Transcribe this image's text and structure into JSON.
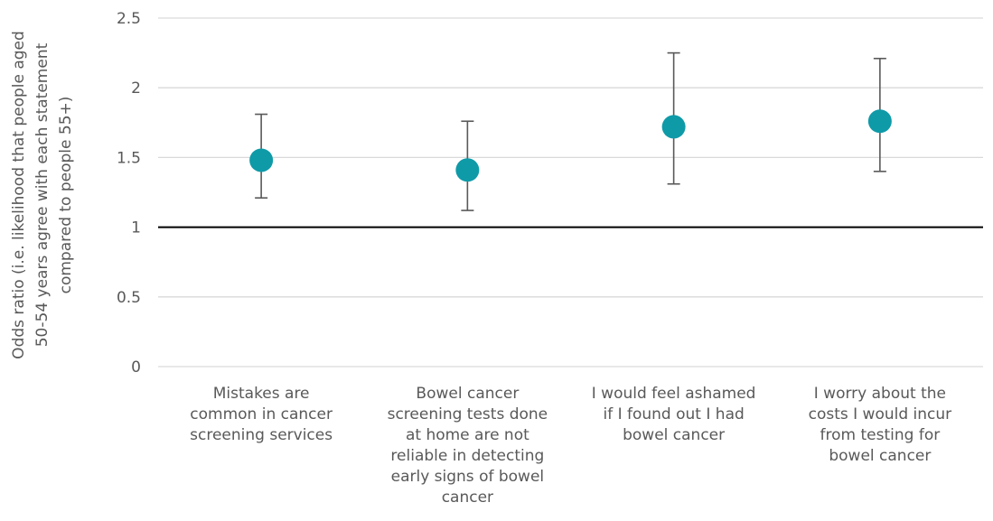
{
  "chart_data": {
    "type": "scatter",
    "subtype": "point-with-error-bars",
    "ylabel_lines": [
      "Odds ratio (i.e. likelihood that people aged",
      "50-54 years agree with each statement",
      "compared to people 55+)"
    ],
    "ylim": [
      0,
      2.5
    ],
    "yticks": [
      0,
      0.5,
      1,
      1.5,
      2,
      2.5
    ],
    "ytick_labels": [
      "0",
      "0.5",
      "1",
      "1.5",
      "2",
      "2.5"
    ],
    "reference_line": 1,
    "grid": true,
    "legend": "none",
    "marker_color": "#0F9AA8",
    "errorbar_color": "#595959",
    "categories": [
      {
        "label_lines": [
          "Mistakes are",
          "common in cancer",
          "screening services"
        ],
        "value": 1.48,
        "lower": 1.21,
        "upper": 1.81
      },
      {
        "label_lines": [
          "Bowel cancer",
          "screening tests done",
          "at home are not",
          "reliable in detecting",
          "early signs of bowel",
          "cancer"
        ],
        "value": 1.41,
        "lower": 1.12,
        "upper": 1.76
      },
      {
        "label_lines": [
          "I would feel ashamed",
          "if I found out I had",
          "bowel cancer"
        ],
        "value": 1.72,
        "lower": 1.31,
        "upper": 2.25
      },
      {
        "label_lines": [
          "I worry about the",
          "costs I would incur",
          "from testing for",
          "bowel cancer"
        ],
        "value": 1.76,
        "lower": 1.4,
        "upper": 2.21
      }
    ]
  }
}
